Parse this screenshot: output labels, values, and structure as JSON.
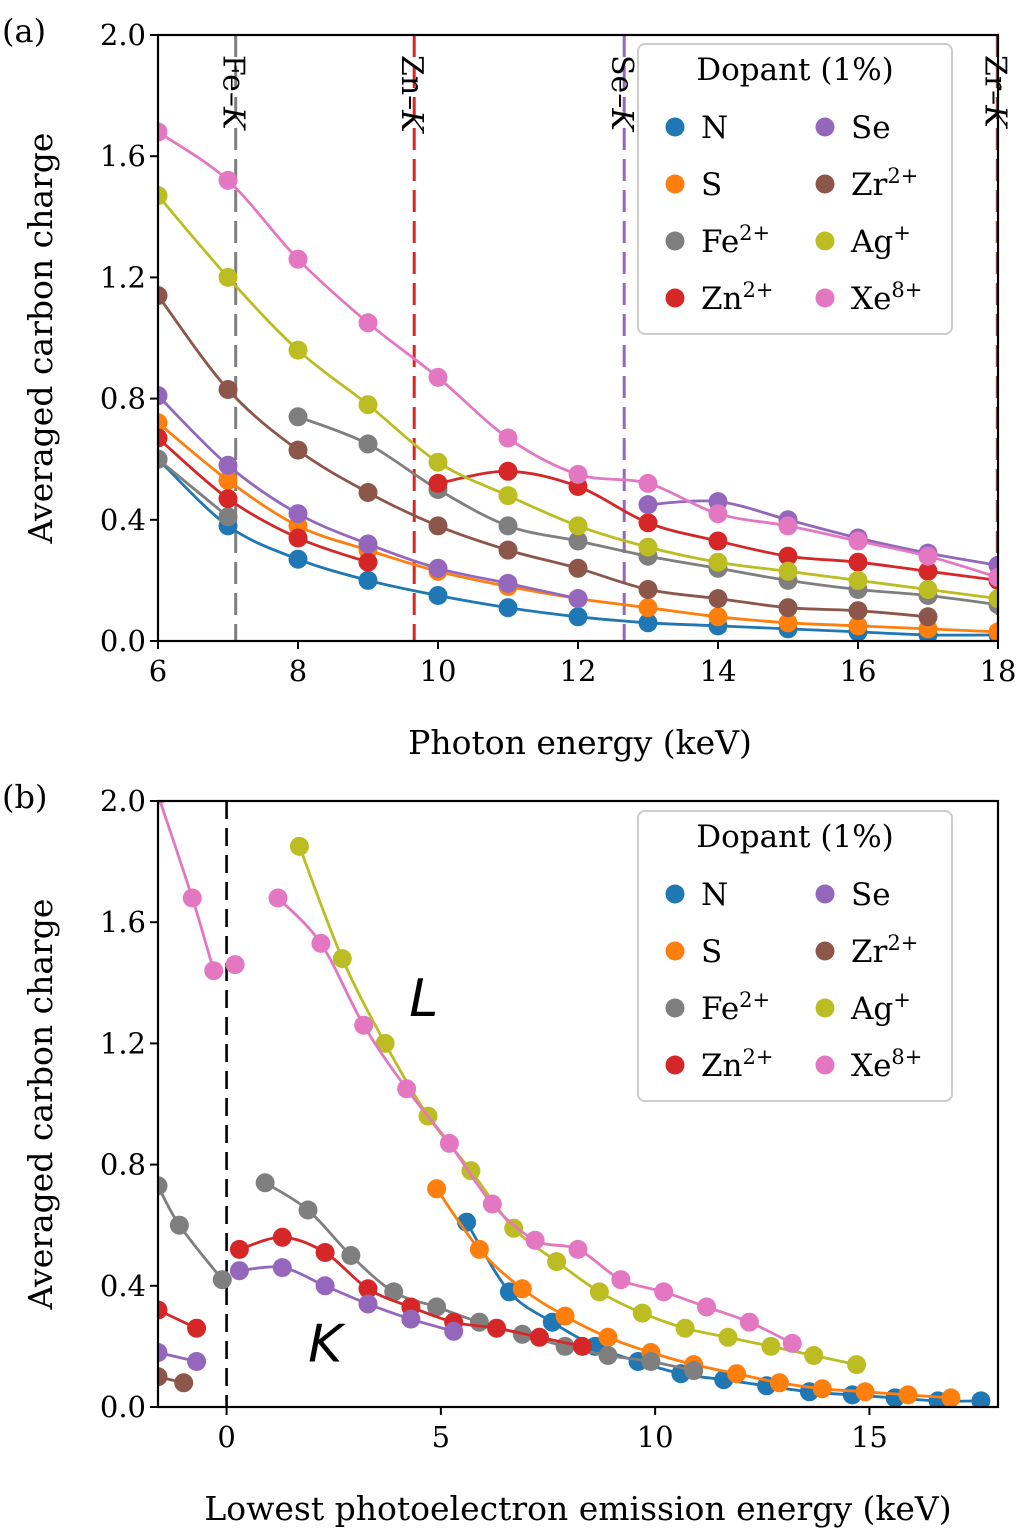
{
  "palette": {
    "N": "#1f77b4",
    "S": "#ff7f0e",
    "Fe": "#7f7f7f",
    "Zn": "#d62728",
    "Se": "#9467bd",
    "Zr": "#8c564b",
    "Ag": "#bcbd22",
    "Xe": "#e377c2"
  },
  "chart_data": [
    {
      "panel": "(a)",
      "type": "line",
      "xlabel": "Photon energy (keV)",
      "ylabel": "Averaged carbon charge",
      "xlim": [
        6,
        18
      ],
      "ylim": [
        0,
        2.0
      ],
      "xticks": [
        "6",
        "8",
        "10",
        "12",
        "14",
        "16",
        "18"
      ],
      "yticks": [
        "0.0",
        "0.4",
        "0.8",
        "1.2",
        "1.6",
        "2.0"
      ],
      "legend": {
        "title": "Dopant (1%)",
        "position": "top-right",
        "entries": [
          {
            "key": "N",
            "base": "N",
            "sup": ""
          },
          {
            "key": "S",
            "base": "S",
            "sup": ""
          },
          {
            "key": "Fe",
            "base": "Fe",
            "sup": "2+"
          },
          {
            "key": "Zn",
            "base": "Zn",
            "sup": "2+"
          },
          {
            "key": "Se",
            "base": "Se",
            "sup": ""
          },
          {
            "key": "Zr",
            "base": "Zr",
            "sup": "2+"
          },
          {
            "key": "Ag",
            "base": "Ag",
            "sup": "+"
          },
          {
            "key": "Xe",
            "base": "Xe",
            "sup": "8+"
          }
        ]
      },
      "edges": [
        {
          "key": "Fe",
          "x": 7.11,
          "base": "Fe–",
          "ital": "K"
        },
        {
          "key": "Zn",
          "x": 9.66,
          "base": "Zn–",
          "ital": "K"
        },
        {
          "key": "Se",
          "x": 12.66,
          "base": "Se–",
          "ital": "K"
        },
        {
          "key": "Zr",
          "x": 17.99,
          "base": "Zr–",
          "ital": "K"
        }
      ],
      "series": [
        {
          "key": "N",
          "x": [
            6,
            7,
            8,
            9,
            10,
            11,
            12,
            13,
            14,
            15,
            16,
            17,
            18
          ],
          "y": [
            0.6,
            0.38,
            0.27,
            0.2,
            0.15,
            0.11,
            0.08,
            0.06,
            0.05,
            0.04,
            0.03,
            0.02,
            0.02
          ]
        },
        {
          "key": "S",
          "x": [
            6,
            7,
            8,
            9,
            10,
            11,
            12,
            13,
            14,
            15,
            16,
            17,
            18
          ],
          "y": [
            0.72,
            0.53,
            0.38,
            0.3,
            0.23,
            0.18,
            0.14,
            0.11,
            0.08,
            0.06,
            0.05,
            0.04,
            0.03
          ]
        },
        {
          "key": "Fe",
          "x": [
            6,
            7
          ],
          "y": [
            0.6,
            0.41
          ]
        },
        {
          "key": "Fe",
          "x": [
            8,
            9,
            10,
            11,
            12,
            13,
            14,
            15,
            16,
            17,
            18
          ],
          "y": [
            0.74,
            0.65,
            0.5,
            0.38,
            0.33,
            0.28,
            0.24,
            0.2,
            0.17,
            0.15,
            0.12
          ]
        },
        {
          "key": "Zn",
          "x": [
            6,
            7,
            8,
            9
          ],
          "y": [
            0.67,
            0.47,
            0.34,
            0.26
          ]
        },
        {
          "key": "Zn",
          "x": [
            10,
            11,
            12,
            13,
            14,
            15,
            16,
            17,
            18
          ],
          "y": [
            0.52,
            0.56,
            0.51,
            0.39,
            0.33,
            0.28,
            0.26,
            0.23,
            0.2
          ]
        },
        {
          "key": "Se",
          "x": [
            6,
            7,
            8,
            9,
            10,
            11,
            12
          ],
          "y": [
            0.81,
            0.58,
            0.42,
            0.32,
            0.24,
            0.19,
            0.14
          ]
        },
        {
          "key": "Se",
          "x": [
            13,
            14,
            15,
            16,
            17,
            18
          ],
          "y": [
            0.45,
            0.46,
            0.4,
            0.34,
            0.29,
            0.25
          ]
        },
        {
          "key": "Zr",
          "x": [
            6,
            7,
            8,
            9,
            10,
            11,
            12,
            13,
            14,
            15,
            16,
            17
          ],
          "y": [
            1.14,
            0.83,
            0.63,
            0.49,
            0.38,
            0.3,
            0.24,
            0.17,
            0.14,
            0.11,
            0.1,
            0.08
          ]
        },
        {
          "key": "Ag",
          "x": [
            6,
            7,
            8,
            9,
            10,
            11,
            12,
            13,
            14,
            15,
            16,
            17,
            18
          ],
          "y": [
            1.47,
            1.2,
            0.96,
            0.78,
            0.59,
            0.48,
            0.38,
            0.31,
            0.26,
            0.23,
            0.2,
            0.17,
            0.14
          ]
        },
        {
          "key": "Xe",
          "x": [
            6,
            7,
            8,
            9,
            10,
            11,
            12,
            13,
            14,
            15,
            16,
            17,
            18
          ],
          "y": [
            1.68,
            1.52,
            1.26,
            1.05,
            0.87,
            0.67,
            0.55,
            0.52,
            0.42,
            0.38,
            0.33,
            0.28,
            0.21
          ]
        }
      ]
    },
    {
      "panel": "(b)",
      "type": "line",
      "xlabel": "Lowest photoelectron emission energy (keV)",
      "ylabel": "Averaged carbon charge",
      "xlim": [
        -1.6,
        18
      ],
      "ylim": [
        0,
        2.0
      ],
      "xticks": [
        "0",
        "5",
        "10",
        "15"
      ],
      "yticks": [
        "0.0",
        "0.4",
        "0.8",
        "1.2",
        "1.6",
        "2.0"
      ],
      "vline_x": 0,
      "annotations": [
        {
          "text": "L",
          "x": 4.6,
          "y": 1.35
        },
        {
          "text": "K",
          "x": 2.3,
          "y": 0.21
        }
      ],
      "legend": {
        "title": "Dopant (1%)",
        "position": "top-right",
        "entries": [
          {
            "key": "N",
            "base": "N",
            "sup": ""
          },
          {
            "key": "S",
            "base": "S",
            "sup": ""
          },
          {
            "key": "Fe",
            "base": "Fe",
            "sup": "2+"
          },
          {
            "key": "Zn",
            "base": "Zn",
            "sup": "2+"
          },
          {
            "key": "Se",
            "base": "Se",
            "sup": ""
          },
          {
            "key": "Zr",
            "base": "Zr",
            "sup": "2+"
          },
          {
            "key": "Ag",
            "base": "Ag",
            "sup": "+"
          },
          {
            "key": "Xe",
            "base": "Xe",
            "sup": "8+"
          }
        ]
      },
      "series": [
        {
          "key": "N",
          "x": [
            5.6,
            6.6,
            7.6,
            8.6,
            9.6,
            10.6,
            11.6,
            12.6,
            13.6,
            14.6,
            15.6,
            16.6,
            17.6
          ],
          "y": [
            0.61,
            0.38,
            0.28,
            0.2,
            0.15,
            0.11,
            0.09,
            0.07,
            0.05,
            0.04,
            0.03,
            0.02,
            0.02
          ]
        },
        {
          "key": "S",
          "x": [
            4.9,
            5.9,
            6.9,
            7.9,
            8.9,
            9.9,
            10.9,
            11.9,
            12.9,
            13.9,
            14.9,
            15.9,
            16.9
          ],
          "y": [
            0.72,
            0.52,
            0.39,
            0.3,
            0.23,
            0.18,
            0.14,
            0.11,
            0.08,
            0.06,
            0.05,
            0.04,
            0.03
          ]
        },
        {
          "key": "Fe",
          "x": [
            -1.6,
            -1.1,
            -0.1
          ],
          "y": [
            0.73,
            0.6,
            0.42
          ]
        },
        {
          "key": "Fe",
          "x": [
            0.9,
            1.9,
            2.9,
            3.9,
            4.9,
            5.9,
            6.9,
            7.9,
            8.9,
            9.9,
            10.9
          ],
          "y": [
            0.74,
            0.65,
            0.5,
            0.38,
            0.33,
            0.28,
            0.24,
            0.2,
            0.17,
            0.15,
            0.12
          ]
        },
        {
          "key": "Zn",
          "x": [
            -1.6,
            -0.7
          ],
          "y": [
            0.32,
            0.26
          ]
        },
        {
          "key": "Zn",
          "x": [
            0.3,
            1.3,
            2.3,
            3.3,
            4.3,
            5.3,
            6.3,
            7.3,
            8.3
          ],
          "y": [
            0.52,
            0.56,
            0.51,
            0.39,
            0.33,
            0.28,
            0.26,
            0.23,
            0.2
          ]
        },
        {
          "key": "Se",
          "x": [
            -1.6,
            -0.7
          ],
          "y": [
            0.18,
            0.15
          ]
        },
        {
          "key": "Se",
          "x": [
            0.3,
            1.3,
            2.3,
            3.3,
            4.3,
            5.3
          ],
          "y": [
            0.45,
            0.46,
            0.4,
            0.34,
            0.29,
            0.25
          ]
        },
        {
          "key": "Zr",
          "x": [
            -1.6,
            -1.0
          ],
          "y": [
            0.1,
            0.08
          ]
        },
        {
          "key": "Ag",
          "x": [
            1.7,
            2.7,
            3.7,
            4.7,
            5.7,
            6.7,
            7.7,
            8.7,
            9.7,
            10.7,
            11.7,
            12.7,
            13.7,
            14.7
          ],
          "y": [
            1.85,
            1.48,
            1.2,
            0.96,
            0.78,
            0.59,
            0.48,
            0.38,
            0.31,
            0.26,
            0.23,
            0.2,
            0.17,
            0.14
          ]
        },
        {
          "key": "Xe",
          "x": [
            -1.6,
            -0.8,
            -0.3
          ],
          "y": [
            2.02,
            1.68,
            1.44
          ]
        },
        {
          "key": "Xe",
          "x": [
            0.2
          ],
          "y": [
            1.46
          ]
        },
        {
          "key": "Xe",
          "x": [
            1.2,
            2.2,
            3.2,
            4.2,
            5.2,
            6.2,
            7.2,
            8.2,
            9.2,
            10.2,
            11.2,
            12.2,
            13.2
          ],
          "y": [
            1.68,
            1.53,
            1.26,
            1.05,
            0.87,
            0.67,
            0.55,
            0.52,
            0.42,
            0.38,
            0.33,
            0.28,
            0.21
          ]
        }
      ]
    }
  ]
}
